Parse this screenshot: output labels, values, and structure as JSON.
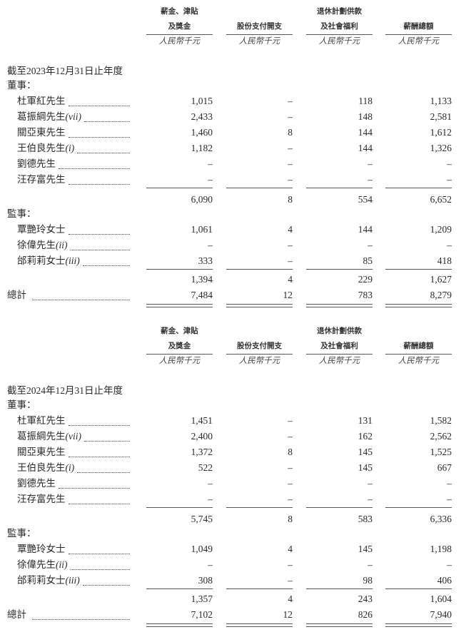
{
  "columns": [
    {
      "line1": "薪金、津貼",
      "line2": "及獎金",
      "unit": "人民幣千元"
    },
    {
      "line1": "",
      "line2": "股份支付開支",
      "unit": "人民幣千元"
    },
    {
      "line1": "退休計劃供款",
      "line2": "及社會福利",
      "unit": "人民幣千元"
    },
    {
      "line1": "",
      "line2": "薪酬總額",
      "unit": "人民幣千元"
    }
  ],
  "blocks": [
    {
      "period": "截至2023年12月31日止年度",
      "directors_label": "董事：",
      "directors": [
        {
          "name": "杜軍紅先生",
          "note": "",
          "values": [
            "1,015",
            "–",
            "118",
            "1,133"
          ]
        },
        {
          "name": "葛振綱先生",
          "note": "(vii)",
          "values": [
            "2,433",
            "–",
            "148",
            "2,581"
          ]
        },
        {
          "name": "關亞東先生",
          "note": "",
          "values": [
            "1,460",
            "8",
            "144",
            "1,612"
          ]
        },
        {
          "name": "王伯良先生",
          "note": "(i)",
          "values": [
            "1,182",
            "–",
            "144",
            "1,326"
          ]
        },
        {
          "name": "劉德先生",
          "note": "",
          "values": [
            "–",
            "–",
            "–",
            "–"
          ]
        },
        {
          "name": "汪存富先生",
          "note": "",
          "values": [
            "–",
            "–",
            "–",
            "–"
          ]
        }
      ],
      "directors_subtotal": [
        "6,090",
        "8",
        "554",
        "6,652"
      ],
      "supervisors_label": "監事：",
      "supervisors": [
        {
          "name": "覃艷玲女士",
          "note": "",
          "values": [
            "1,061",
            "4",
            "144",
            "1,209"
          ]
        },
        {
          "name": "徐偉先生",
          "note": "(ii)",
          "values": [
            "–",
            "–",
            "–",
            "–"
          ]
        },
        {
          "name": "邰莉莉女士",
          "note": "(iii)",
          "values": [
            "333",
            "–",
            "85",
            "418"
          ]
        }
      ],
      "supervisors_subtotal": [
        "1,394",
        "4",
        "229",
        "1,627"
      ],
      "total_label": "總計",
      "total": [
        "7,484",
        "12",
        "783",
        "8,279"
      ]
    },
    {
      "period": "截至2024年12月31日止年度",
      "directors_label": "董事：",
      "directors": [
        {
          "name": "杜軍紅先生",
          "note": "",
          "values": [
            "1,451",
            "–",
            "131",
            "1,582"
          ]
        },
        {
          "name": "葛振綱先生",
          "note": "(vii)",
          "values": [
            "2,400",
            "–",
            "162",
            "2,562"
          ]
        },
        {
          "name": "關亞東先生",
          "note": "",
          "values": [
            "1,372",
            "8",
            "145",
            "1,525"
          ]
        },
        {
          "name": "王伯良先生",
          "note": "(i)",
          "values": [
            "522",
            "–",
            "145",
            "667"
          ]
        },
        {
          "name": "劉德先生",
          "note": "",
          "values": [
            "–",
            "–",
            "–",
            "–"
          ]
        },
        {
          "name": "汪存富先生",
          "note": "",
          "values": [
            "–",
            "–",
            "–",
            "–"
          ]
        }
      ],
      "directors_subtotal": [
        "5,745",
        "8",
        "583",
        "6,336"
      ],
      "supervisors_label": "監事：",
      "supervisors": [
        {
          "name": "覃艷玲女士",
          "note": "",
          "values": [
            "1,049",
            "4",
            "145",
            "1,198"
          ]
        },
        {
          "name": "徐偉先生",
          "note": "(ii)",
          "values": [
            "–",
            "–",
            "–",
            "–"
          ]
        },
        {
          "name": "邰莉莉女士",
          "note": "(iii)",
          "values": [
            "308",
            "–",
            "98",
            "406"
          ]
        }
      ],
      "supervisors_subtotal": [
        "1,357",
        "4",
        "243",
        "1,604"
      ],
      "total_label": "總計",
      "total": [
        "7,102",
        "12",
        "826",
        "7,940"
      ]
    }
  ]
}
